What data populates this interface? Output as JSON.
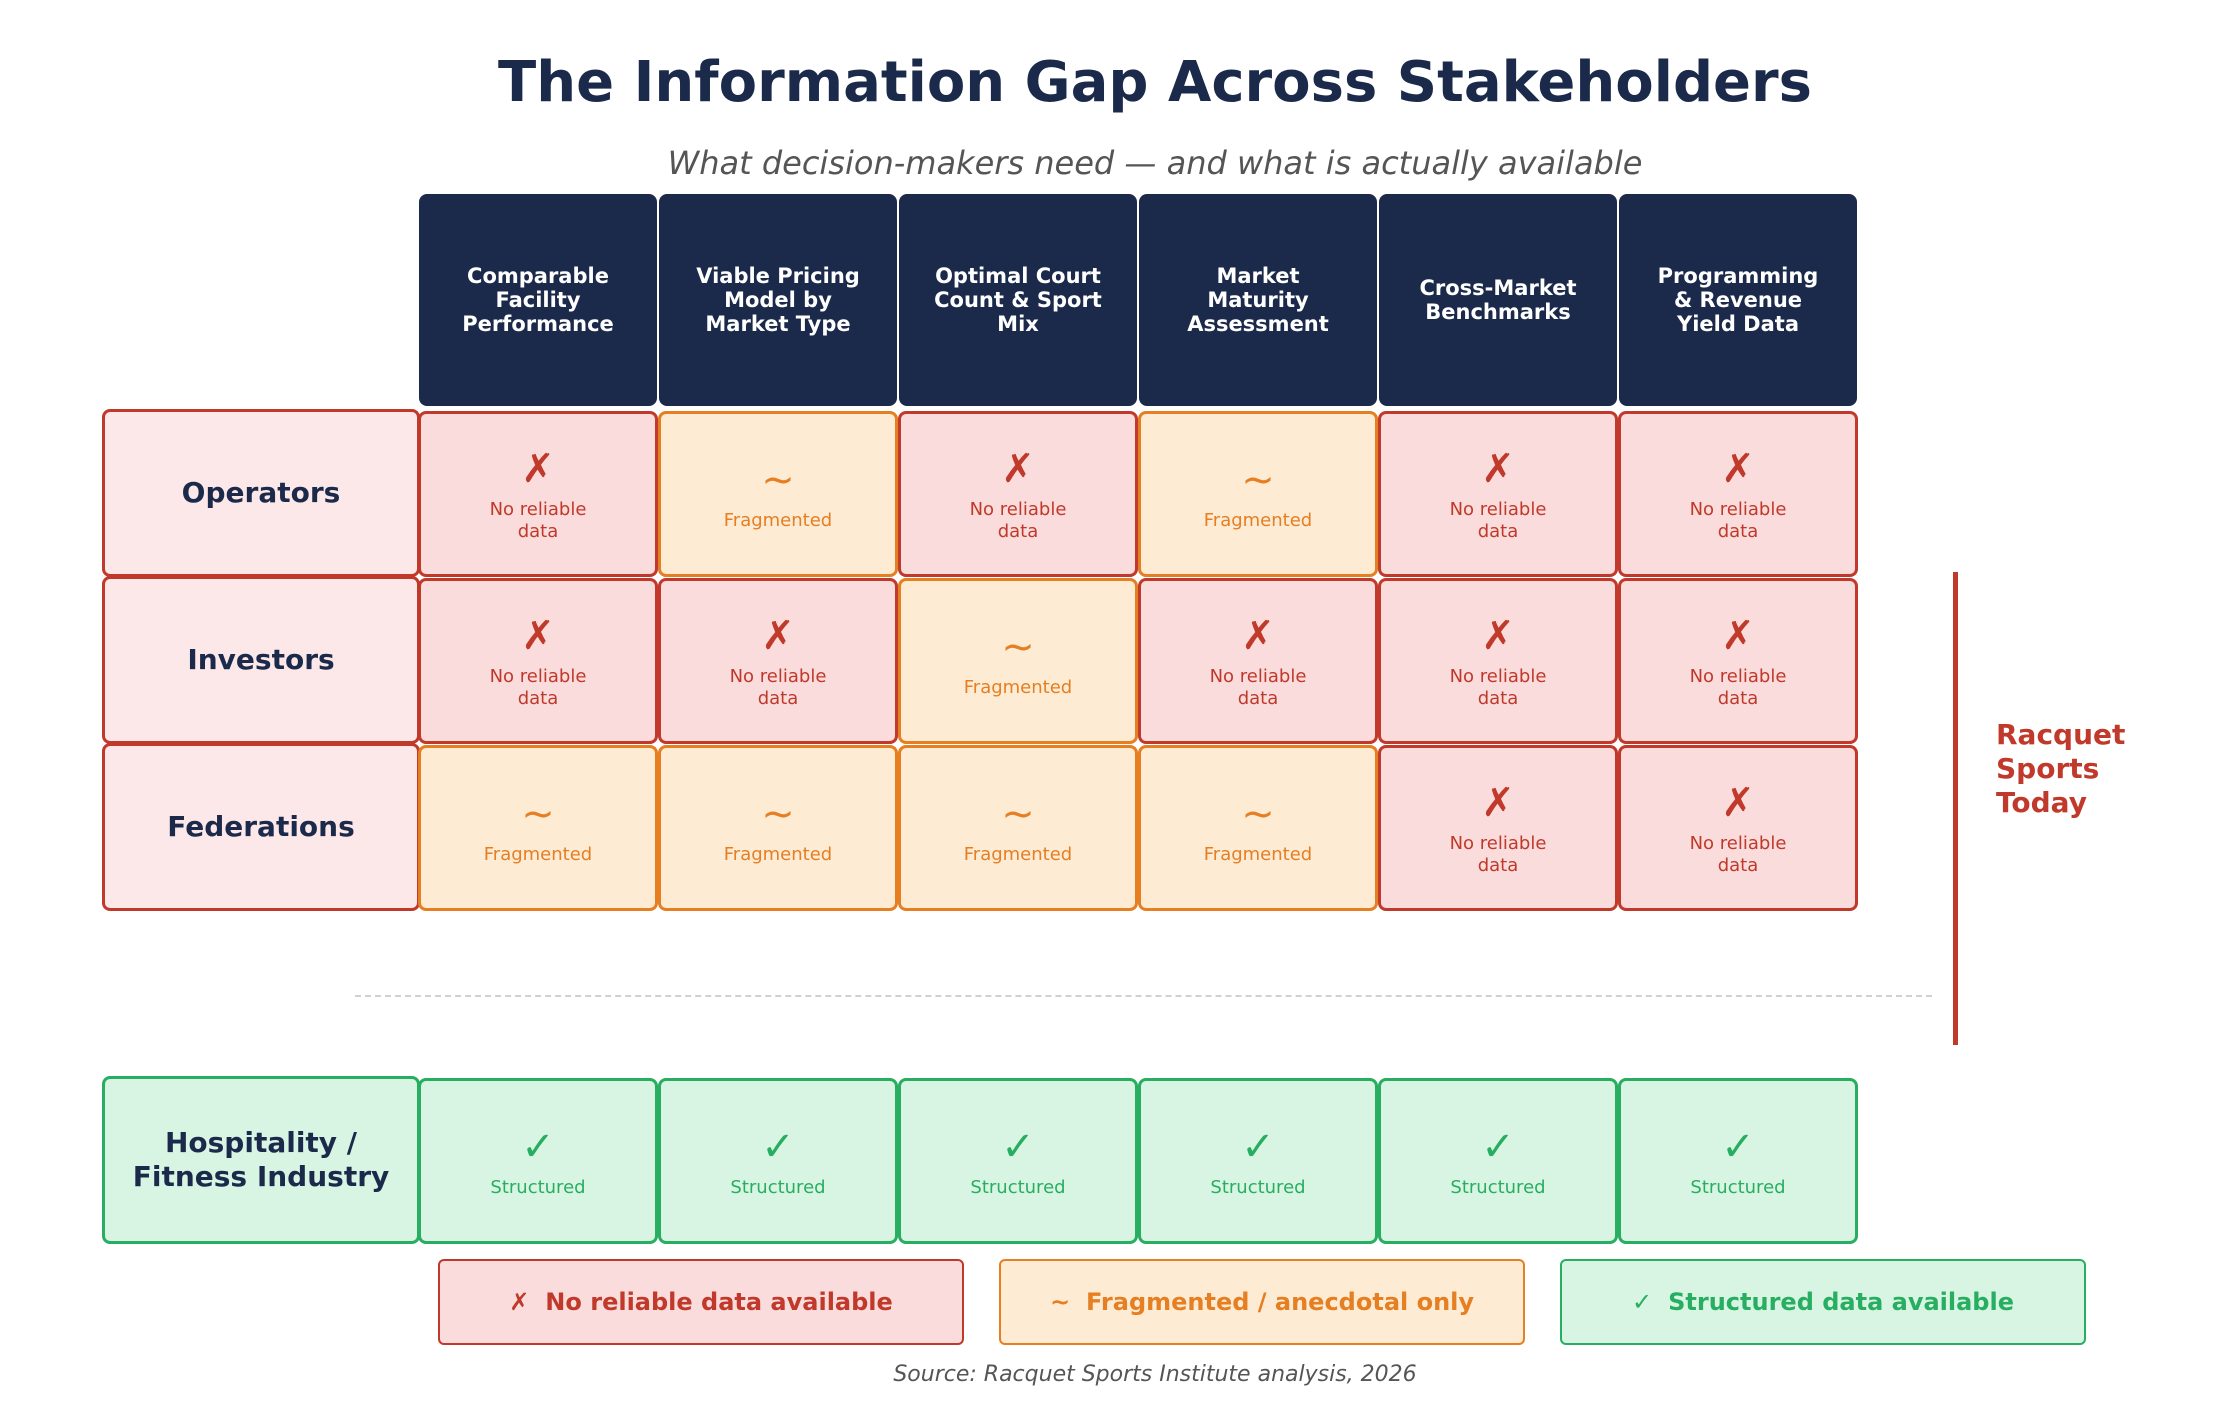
{
  "header": {
    "title": "The Information Gap Across Stakeholders",
    "subtitle": "What decision-makers need — and what is actually available"
  },
  "columns": [
    "Comparable Facility Performance",
    "Viable Pricing Model by Market Type",
    "Optimal Court Count & Sport Mix",
    "Market Maturity Assessment",
    "Cross-Market Benchmarks",
    "Programming & Revenue Yield Data"
  ],
  "legend": [
    {
      "symbol": "✗",
      "text": "No reliable data available",
      "color": "#c0392b",
      "background": "#f9dcdb"
    },
    {
      "symbol": "~",
      "text": "Fragmented / anecdotal only",
      "color": "#e67e22",
      "background": "#fdebd3"
    },
    {
      "symbol": "✓",
      "text": "Structured data available",
      "color": "#27ae60",
      "background": "#d8f5e3"
    }
  ],
  "stakeholder_rows": {
    "color": "#c0392b",
    "background": "#fce8e8",
    "side_label": "Racquet Sports Today",
    "rows": [
      {
        "label": "Operators",
        "cells": [
          {
            "symbol": "✗",
            "text": "No reliable data"
          },
          {
            "symbol": "~",
            "text": "Fragmented"
          },
          {
            "symbol": "✗",
            "text": "No reliable data"
          },
          {
            "symbol": "~",
            "text": "Fragmented"
          },
          {
            "symbol": "✗",
            "text": "No reliable data"
          },
          {
            "symbol": "✗",
            "text": "No reliable data"
          }
        ]
      },
      {
        "label": "Investors",
        "cells": [
          {
            "symbol": "✗",
            "text": "No reliable data"
          },
          {
            "symbol": "✗",
            "text": "No reliable data"
          },
          {
            "symbol": "~",
            "text": "Fragmented"
          },
          {
            "symbol": "✗",
            "text": "No reliable data"
          },
          {
            "symbol": "✗",
            "text": "No reliable data"
          },
          {
            "symbol": "✗",
            "text": "No reliable data"
          }
        ]
      },
      {
        "label": "Federations",
        "cells": [
          {
            "symbol": "~",
            "text": "Fragmented"
          },
          {
            "symbol": "~",
            "text": "Fragmented"
          },
          {
            "symbol": "~",
            "text": "Fragmented"
          },
          {
            "symbol": "~",
            "text": "Fragmented"
          },
          {
            "symbol": "✗",
            "text": "No reliable data"
          },
          {
            "symbol": "✗",
            "text": "No reliable data"
          }
        ]
      }
    ]
  },
  "benchmark_row": {
    "color": "#27ae60",
    "background": "#d8f5e3",
    "label": "Hospitality / Fitness Industry",
    "cells": [
      {
        "symbol": "✓",
        "text": "Structured"
      },
      {
        "symbol": "✓",
        "text": "Structured"
      },
      {
        "symbol": "✓",
        "text": "Structured"
      },
      {
        "symbol": "✓",
        "text": "Structured"
      },
      {
        "symbol": "✓",
        "text": "Structured"
      },
      {
        "symbol": "✓",
        "text": "Structured"
      }
    ]
  },
  "source": "Source: Racquet Sports Institute analysis, 2026"
}
